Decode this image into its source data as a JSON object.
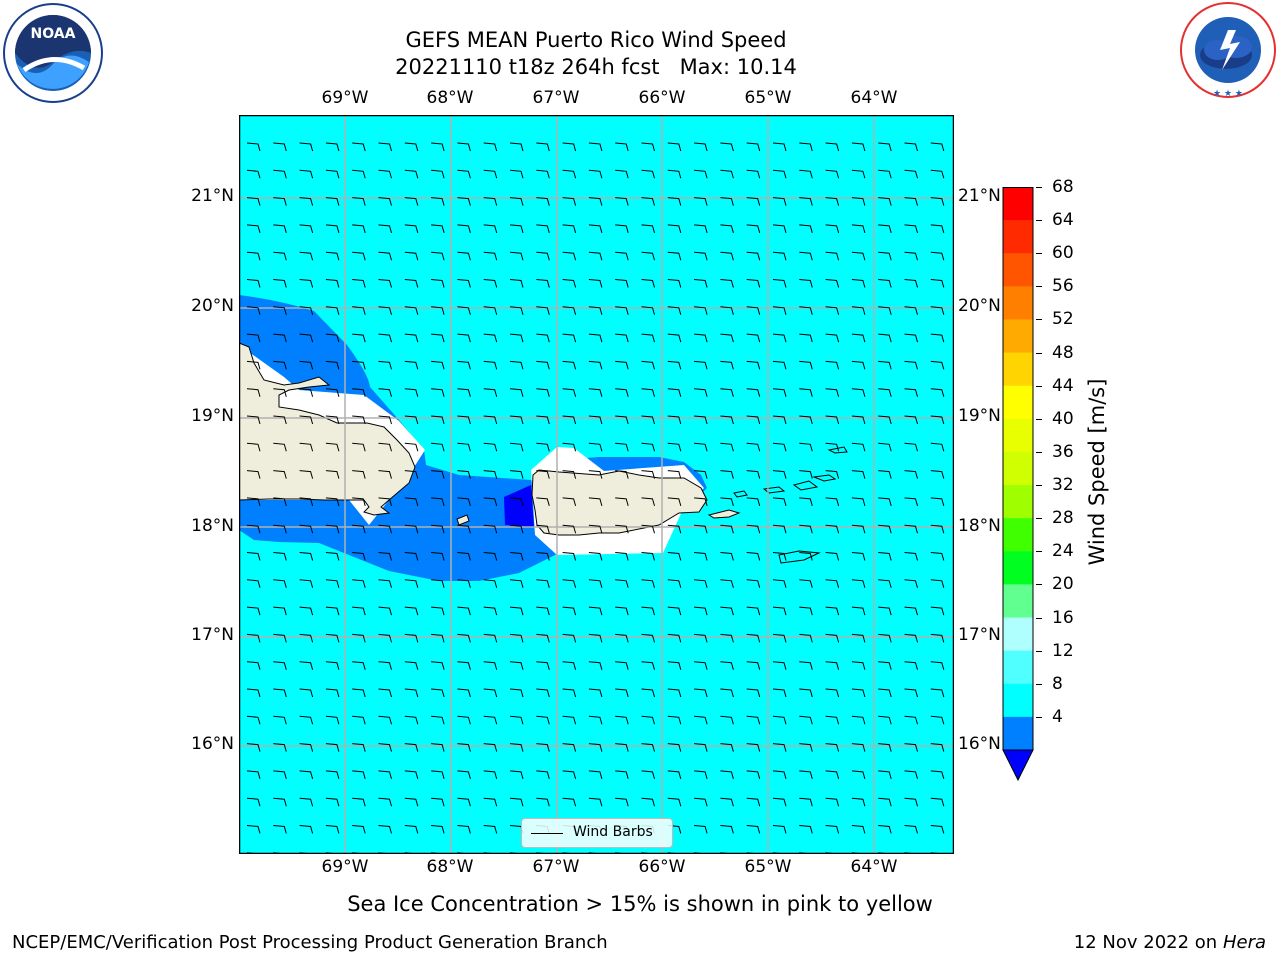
{
  "title": {
    "line1": "GEFS MEAN Puerto Rico Wind Speed",
    "line2": "20221110 t18z 264h fcst   Max: 10.14"
  },
  "logos": {
    "left": {
      "text": "NOAA",
      "ring_text": "NATIONAL OCEANIC AND ATMOSPHERIC ADMINISTRATION · U.S. DEPARTMENT OF COMMERCE"
    },
    "right": {
      "ring_text": "NATIONAL WEATHER SERVICE"
    }
  },
  "map": {
    "lon_labels": [
      "69°W",
      "68°W",
      "67°W",
      "66°W",
      "65°W",
      "64°W"
    ],
    "lat_labels": [
      "21°N",
      "20°N",
      "19°N",
      "18°N",
      "17°N",
      "16°N"
    ],
    "ocean_color": "#00ffff",
    "land_color": "#efeedc",
    "band_color": "#0080ff",
    "dark_color": "#0000ff",
    "legend_label": "Wind Barbs"
  },
  "colorbar": {
    "title": "Wind Speed [m/s]",
    "ticks": [
      "68",
      "64",
      "60",
      "56",
      "52",
      "48",
      "44",
      "40",
      "36",
      "32",
      "28",
      "24",
      "20",
      "16",
      "12",
      "8",
      "4"
    ],
    "colors": [
      "#ff0000",
      "#ff2a00",
      "#ff5500",
      "#ff8000",
      "#ffaa00",
      "#ffd400",
      "#ffff00",
      "#e7ff00",
      "#cfff00",
      "#9fff00",
      "#40ff00",
      "#00ff20",
      "#60ff90",
      "#b0ffff",
      "#50ffff",
      "#00ffff",
      "#0080ff"
    ],
    "extend_color": "#0000ff"
  },
  "footnote": "Sea Ice Concentration > 15% is shown in pink to yellow",
  "bottom_left": "NCEP/EMC/Verification Post Processing Product Generation Branch",
  "bottom_right_date": "12 Nov 2022 on",
  "bottom_right_host": "Hera"
}
